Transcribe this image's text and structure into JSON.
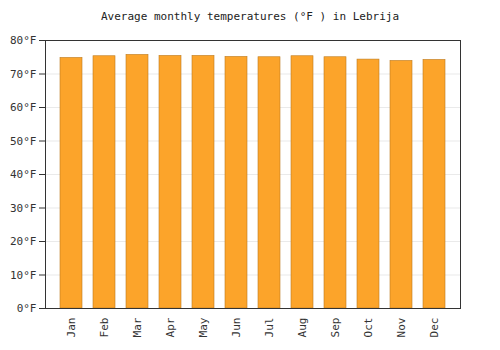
{
  "chart_data": {
    "type": "bar",
    "title": "Average monthly temperatures (°F ) in Lebrija",
    "categories": [
      "Jan",
      "Feb",
      "Mar",
      "Apr",
      "May",
      "Jun",
      "Jul",
      "Aug",
      "Sep",
      "Oct",
      "Nov",
      "Dec"
    ],
    "values": [
      74.8,
      75.3,
      75.7,
      75.4,
      75.4,
      75.1,
      75.0,
      75.3,
      75.0,
      74.3,
      73.9,
      74.2
    ],
    "color": "#fca42a",
    "ylim": [
      0,
      80
    ],
    "yticks": [
      {
        "value": 0,
        "label": "0°F"
      },
      {
        "value": 10,
        "label": "10°F"
      },
      {
        "value": 20,
        "label": "20°F"
      },
      {
        "value": 30,
        "label": "30°F"
      },
      {
        "value": 40,
        "label": "40°F"
      },
      {
        "value": 50,
        "label": "50°F"
      },
      {
        "value": 60,
        "label": "60°F"
      },
      {
        "value": 70,
        "label": "70°F"
      },
      {
        "value": 80,
        "label": "80°F"
      }
    ],
    "grid": true
  }
}
